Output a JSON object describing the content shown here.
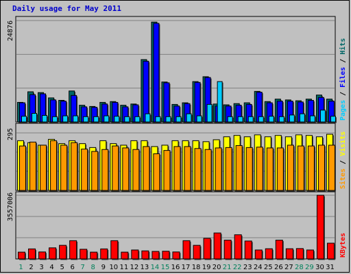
{
  "chart_data": [
    {
      "type": "bar",
      "title": "Daily usage for May 2011",
      "x": [
        "1",
        "2",
        "3",
        "4",
        "5",
        "6",
        "7",
        "8",
        "9",
        "10",
        "11",
        "12",
        "13",
        "14",
        "15",
        "16",
        "17",
        "18",
        "19",
        "20",
        "21",
        "22",
        "23",
        "24",
        "25",
        "26",
        "27",
        "28",
        "29",
        "30",
        "31"
      ],
      "weekend_days": [
        "1",
        "7",
        "8",
        "14",
        "15",
        "21",
        "22",
        "28",
        "29"
      ],
      "ymax_label": "24876",
      "ylim": [
        0,
        24876
      ],
      "legend": [
        "Pages",
        "Files",
        "Hits"
      ],
      "series": [
        {
          "name": "Hits",
          "color": "#006666",
          "values": [
            4800,
            7400,
            7200,
            5900,
            5300,
            7600,
            4100,
            3800,
            4800,
            5000,
            4100,
            4400,
            15300,
            24500,
            9800,
            4300,
            4700,
            9900,
            11100,
            4400,
            4200,
            4500,
            4700,
            7500,
            5000,
            5600,
            5400,
            5200,
            5600,
            6600,
            5600
          ]
        },
        {
          "name": "Files",
          "color": "#0000ff",
          "values": [
            4700,
            6700,
            6900,
            5400,
            5100,
            6500,
            3700,
            3600,
            4400,
            4800,
            3700,
            4200,
            14900,
            24200,
            9600,
            3900,
            4500,
            9700,
            10900,
            3900,
            3900,
            4100,
            4300,
            7300,
            4700,
            5100,
            5100,
            4900,
            5300,
            6000,
            5100
          ]
        },
        {
          "name": "Pages",
          "color": "#00ccff",
          "values": [
            1400,
            2100,
            1600,
            1300,
            1500,
            1500,
            1300,
            1300,
            1500,
            1400,
            1300,
            1300,
            2000,
            1300,
            1300,
            1300,
            2000,
            1500,
            4300,
            9900,
            1300,
            1300,
            1300,
            1300,
            1400,
            1300,
            1700,
            2000,
            1500,
            2900,
            1400
          ]
        }
      ]
    },
    {
      "type": "bar",
      "x": [
        "1",
        "2",
        "3",
        "4",
        "5",
        "6",
        "7",
        "8",
        "9",
        "10",
        "11",
        "12",
        "13",
        "14",
        "15",
        "16",
        "17",
        "18",
        "19",
        "20",
        "21",
        "22",
        "23",
        "24",
        "25",
        "26",
        "27",
        "28",
        "29",
        "30",
        "31"
      ],
      "ymax_label": "295",
      "ylim": [
        0,
        295
      ],
      "legend": [
        "Sites",
        "Visits"
      ],
      "series": [
        {
          "name": "Visits",
          "color": "#ffff00",
          "values": [
            255,
            245,
            232,
            262,
            240,
            255,
            240,
            220,
            255,
            240,
            232,
            255,
            255,
            225,
            232,
            255,
            255,
            255,
            250,
            260,
            275,
            282,
            275,
            285,
            275,
            282,
            275,
            285,
            282,
            275,
            288
          ]
        },
        {
          "name": "Sites",
          "color": "#ff9900",
          "values": [
            228,
            248,
            232,
            255,
            232,
            245,
            212,
            200,
            210,
            228,
            218,
            210,
            225,
            188,
            205,
            225,
            225,
            215,
            210,
            218,
            220,
            230,
            220,
            222,
            218,
            218,
            232,
            228,
            228,
            232,
            232
          ]
        }
      ]
    },
    {
      "type": "bar",
      "x": [
        "1",
        "2",
        "3",
        "4",
        "5",
        "6",
        "7",
        "8",
        "9",
        "10",
        "11",
        "12",
        "13",
        "14",
        "15",
        "16",
        "17",
        "18",
        "19",
        "20",
        "21",
        "22",
        "23",
        "24",
        "25",
        "26",
        "27",
        "28",
        "29",
        "30",
        "31"
      ],
      "ymax_label": "3557006",
      "ylim": [
        0,
        3557006
      ],
      "legend": [
        "KBytes"
      ],
      "series": [
        {
          "name": "KBytes",
          "color": "#ff0000",
          "values": [
            380000,
            560000,
            390000,
            620000,
            760000,
            1020000,
            540000,
            380000,
            560000,
            1020000,
            380000,
            500000,
            450000,
            420000,
            430000,
            390000,
            1020000,
            760000,
            1150000,
            1450000,
            1050000,
            1350000,
            1000000,
            500000,
            570000,
            1050000,
            570000,
            580000,
            500000,
            3557006,
            880000
          ]
        }
      ]
    }
  ]
}
